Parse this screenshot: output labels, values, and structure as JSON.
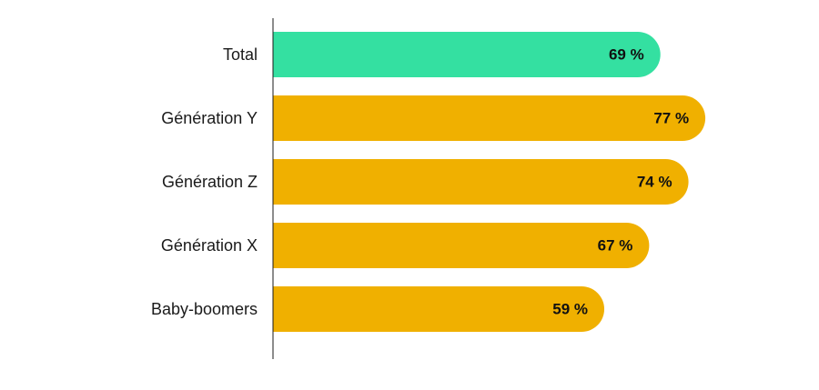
{
  "chart_data": {
    "type": "bar",
    "orientation": "horizontal",
    "categories": [
      "Total",
      "Génération Y",
      "Génération Z",
      "Génération X",
      "Baby-boomers"
    ],
    "values": [
      69,
      77,
      74,
      67,
      59
    ],
    "value_labels": [
      "69 %",
      "77 %",
      "74 %",
      "67 %",
      "59 %"
    ],
    "xlim": [
      0,
      100
    ],
    "grid": false,
    "legend": "none",
    "colors": {
      "highlight": "#34E0A1",
      "default": "#F0B000",
      "axis": "#1a1a1a"
    },
    "highlight_categories": [
      "Total"
    ]
  }
}
